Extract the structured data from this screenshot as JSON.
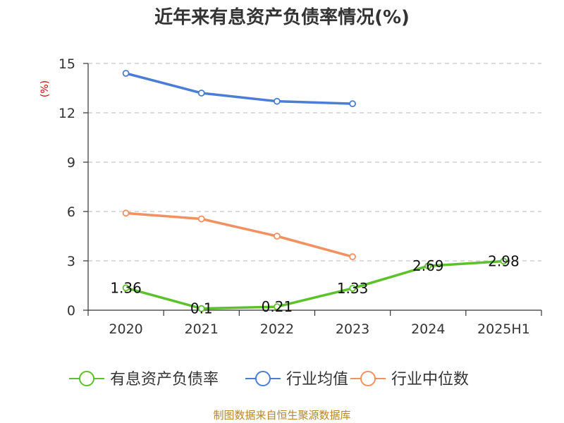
{
  "title": "近年来有息资产负债率情况(%)",
  "source": "制图数据来自恒生聚源数据库",
  "chart_data": {
    "type": "line",
    "title": "近年来有息资产负债率情况(%)",
    "ylabel": "(%)",
    "categories": [
      "2020",
      "2021",
      "2022",
      "2023",
      "2024",
      "2025H1"
    ],
    "ylim": [
      0,
      15
    ],
    "yticks": [
      0,
      3,
      6,
      9,
      12,
      15
    ],
    "grid": true,
    "legend_position": "bottom",
    "series": [
      {
        "name": "有息资产负债率",
        "color": "#5cc12b",
        "values": [
          1.36,
          0.1,
          0.21,
          1.33,
          2.69,
          2.98
        ],
        "labels": [
          "1.36",
          "0.1",
          "0.21",
          "1.33",
          "2.69",
          "2.98"
        ]
      },
      {
        "name": "行业均值",
        "color": "#4a7ed6",
        "values": [
          14.4,
          13.2,
          12.7,
          12.55,
          null,
          null
        ]
      },
      {
        "name": "行业中位数",
        "color": "#f29060",
        "values": [
          5.9,
          5.55,
          4.5,
          3.25,
          null,
          null
        ]
      }
    ]
  }
}
